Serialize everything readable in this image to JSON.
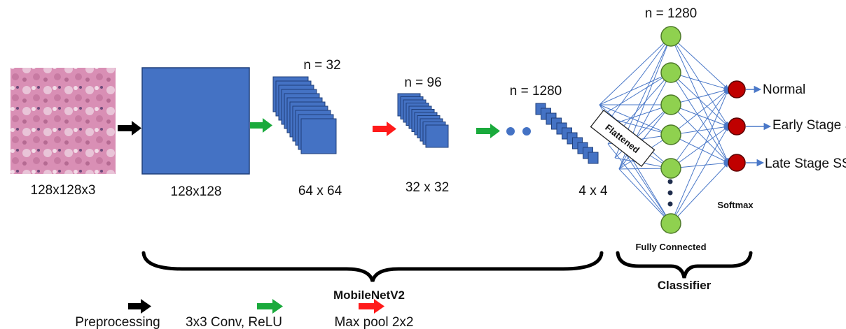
{
  "input": {
    "label": "128x128x3"
  },
  "layers": [
    {
      "size_label": "128x128",
      "count_label": ""
    },
    {
      "size_label": "64 x 64",
      "count_label": "n = 32"
    },
    {
      "size_label": "32 x 32",
      "count_label": "n = 96"
    },
    {
      "size_label": "4 x 4",
      "count_label": "n = 1280"
    }
  ],
  "flattened_label": "Flattened",
  "fc": {
    "count_label": "n = 1280",
    "label": "Fully Connected"
  },
  "softmax_label": "Softmax",
  "outputs": [
    "Normal",
    "Early Stage SSc",
    "Late Stage SSc"
  ],
  "groups": {
    "backbone": "MobileNetV2",
    "classifier": "Classifier"
  },
  "legend": [
    {
      "label": "Preprocessing",
      "color": "#000000"
    },
    {
      "label": "3x3 Conv, ReLU",
      "color": "#1aaa3c"
    },
    {
      "label": "Max pool 2x2",
      "color": "#ff1a1a"
    }
  ],
  "colors": {
    "block_fill": "#4472c4",
    "block_stroke": "#1f3f7a",
    "node_green": "#8fd14f",
    "node_red": "#c00000",
    "line_blue": "#4a78c8"
  }
}
